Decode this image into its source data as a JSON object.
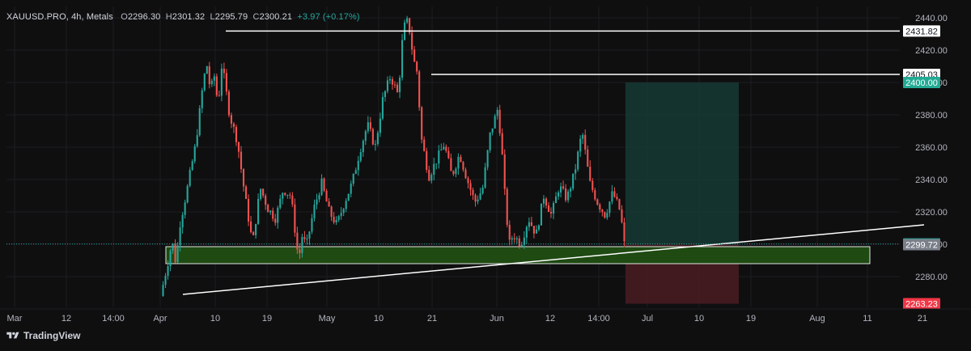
{
  "header": {
    "symbol": "XAUUSD.PRO",
    "timeframe": "4h",
    "group": "Metals",
    "o_label": "O",
    "o": "2296.30",
    "h_label": "H",
    "h": "2301.32",
    "l_label": "L",
    "l": "2295.79",
    "c_label": "C",
    "c": "2300.21",
    "change": "+3.97 (+0.17%)"
  },
  "branding": {
    "name": "TradingView",
    "icon": "tradingview-logo-icon"
  },
  "colors": {
    "up": "#26a69a",
    "down": "#ef5350",
    "target_zone": "#163a34",
    "stop_zone": "#4a1c22",
    "support_zone": "#1f4a12",
    "price_line": "#26a69a"
  },
  "chart_data": {
    "type": "candlestick",
    "y_ticks": [
      2280,
      2300,
      2320,
      2340,
      2360,
      2380,
      2400,
      2420,
      2440
    ],
    "ylim": [
      2262,
      2448
    ],
    "x_ticks": [
      "Mar",
      "12",
      "14:00",
      "Apr",
      "10",
      "19",
      "May",
      "10",
      "21",
      "Jun",
      "12",
      "14:00",
      "Jul",
      "10",
      "19",
      "Aug",
      "11",
      "21"
    ],
    "price_path": [
      [
        0,
        2268
      ],
      [
        2,
        2290
      ],
      [
        3,
        2302
      ],
      [
        4,
        2288
      ],
      [
        5,
        2312
      ],
      [
        7,
        2335
      ],
      [
        9,
        2360
      ],
      [
        10,
        2378
      ],
      [
        11,
        2398
      ],
      [
        12,
        2412
      ],
      [
        13,
        2395
      ],
      [
        14,
        2404
      ],
      [
        15,
        2386
      ],
      [
        16,
        2412
      ],
      [
        18,
        2380
      ],
      [
        20,
        2364
      ],
      [
        22,
        2330
      ],
      [
        24,
        2300
      ],
      [
        25,
        2318
      ],
      [
        26,
        2335
      ],
      [
        28,
        2322
      ],
      [
        30,
        2316
      ],
      [
        32,
        2334
      ],
      [
        34,
        2330
      ],
      [
        36,
        2290
      ],
      [
        37,
        2306
      ],
      [
        38,
        2298
      ],
      [
        40,
        2322
      ],
      [
        42,
        2338
      ],
      [
        44,
        2320
      ],
      [
        46,
        2312
      ],
      [
        48,
        2326
      ],
      [
        50,
        2338
      ],
      [
        52,
        2358
      ],
      [
        54,
        2374
      ],
      [
        56,
        2360
      ],
      [
        58,
        2390
      ],
      [
        60,
        2404
      ],
      [
        62,
        2392
      ],
      [
        63,
        2424
      ],
      [
        64,
        2440
      ],
      [
        65,
        2432
      ],
      [
        66,
        2414
      ],
      [
        67,
        2406
      ],
      [
        68,
        2366
      ],
      [
        70,
        2342
      ],
      [
        72,
        2352
      ],
      [
        74,
        2362
      ],
      [
        76,
        2342
      ],
      [
        78,
        2356
      ],
      [
        80,
        2340
      ],
      [
        82,
        2326
      ],
      [
        84,
        2334
      ],
      [
        86,
        2368
      ],
      [
        88,
        2384
      ],
      [
        89,
        2360
      ],
      [
        90,
        2324
      ],
      [
        91,
        2300
      ],
      [
        92,
        2306
      ],
      [
        94,
        2300
      ],
      [
        96,
        2316
      ],
      [
        98,
        2306
      ],
      [
        100,
        2330
      ],
      [
        102,
        2318
      ],
      [
        104,
        2336
      ],
      [
        106,
        2328
      ],
      [
        108,
        2344
      ],
      [
        110,
        2370
      ],
      [
        112,
        2338
      ],
      [
        114,
        2326
      ],
      [
        116,
        2318
      ],
      [
        118,
        2332
      ],
      [
        120,
        2320
      ],
      [
        121,
        2300
      ]
    ],
    "horizontal_levels": [
      {
        "label": "2431.82",
        "value": 2431.82
      },
      {
        "label": "2405.03",
        "value": 2405.03
      }
    ],
    "current_price": {
      "label": "2300.21",
      "value": 2300.21
    },
    "position": {
      "target": {
        "label": "2400.00",
        "value": 2400.0
      },
      "entry": {
        "label": "2299.72",
        "value": 2299.72
      },
      "stop": {
        "label": "2263.23",
        "value": 2263.23
      }
    },
    "support_zone": {
      "low": 2288,
      "high": 2298.5
    },
    "trendline": {
      "from": 2269,
      "to": 2312
    }
  }
}
